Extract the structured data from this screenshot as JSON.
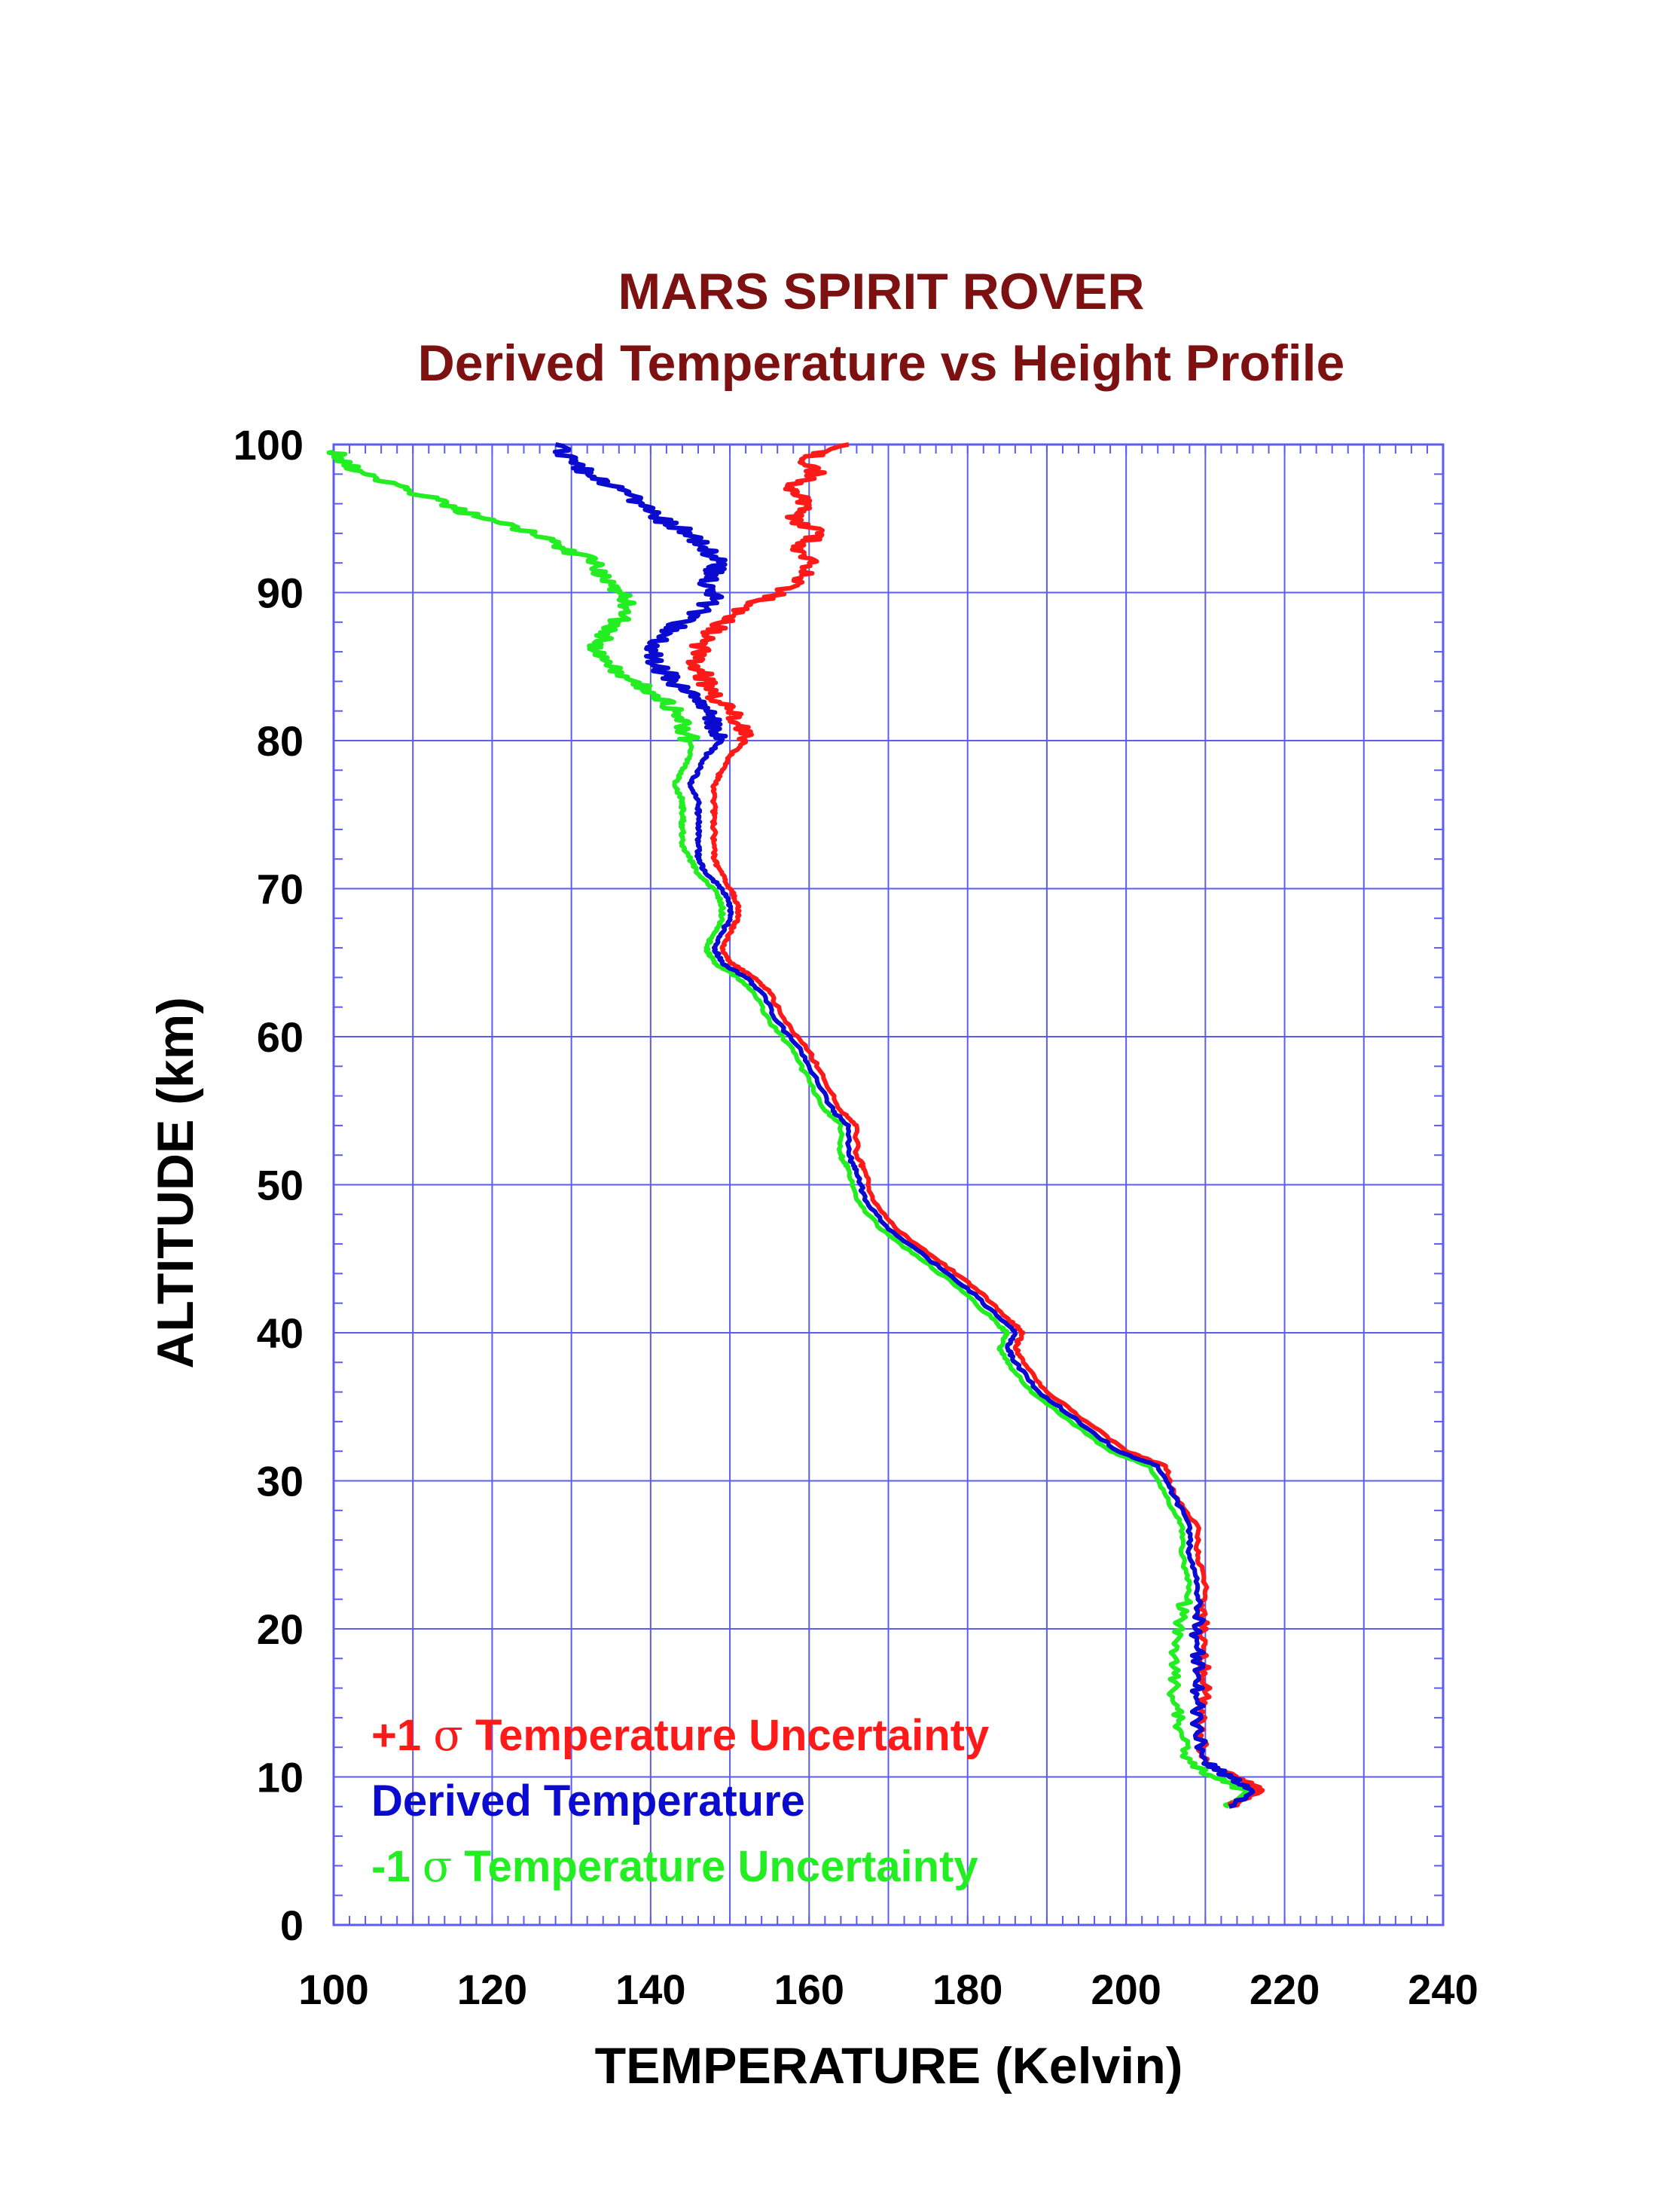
{
  "chart_data": {
    "type": "line",
    "title": "MARS SPIRIT ROVER",
    "subtitle": "Derived Temperature vs Height Profile",
    "xlabel": "TEMPERATURE (Kelvin)",
    "ylabel": "ALTITUDE (km)",
    "xlim": [
      100,
      240
    ],
    "ylim": [
      0,
      100
    ],
    "x_ticks": [
      100,
      120,
      140,
      160,
      180,
      200,
      220,
      240
    ],
    "y_ticks": [
      0,
      10,
      20,
      30,
      40,
      50,
      60,
      70,
      80,
      90,
      100
    ],
    "x_tick_labels": [
      "100",
      "120",
      "140",
      "160",
      "180",
      "200",
      "220",
      "240"
    ],
    "y_tick_labels": [
      "0",
      "10",
      "20",
      "30",
      "40",
      "50",
      "60",
      "70",
      "80",
      "90",
      "100"
    ],
    "grid": true,
    "legend_position": "bottom-left",
    "legend": [
      {
        "prefix": "+1 ",
        "symbol": "σ",
        "suffix": " Temperature Uncertainty",
        "color": "#ff1a1a"
      },
      {
        "prefix": "",
        "symbol": "",
        "suffix": "Derived Temperature",
        "color": "#0a0ad0"
      },
      {
        "prefix": "-1 ",
        "symbol": "σ",
        "suffix": " Temperature Uncertainty",
        "color": "#22ee22"
      }
    ],
    "series": [
      {
        "name": "+1 σ Temperature Uncertainty",
        "color": "#ff1a1a",
        "points": [
          [
            213,
            8
          ],
          [
            217,
            9
          ],
          [
            214,
            10
          ],
          [
            210,
            11
          ],
          [
            209,
            13
          ],
          [
            210,
            15
          ],
          [
            210,
            17
          ],
          [
            210,
            19
          ],
          [
            210,
            21
          ],
          [
            210,
            23
          ],
          [
            209,
            25
          ],
          [
            209,
            27
          ],
          [
            206,
            29
          ],
          [
            205,
            31
          ],
          [
            200,
            32
          ],
          [
            195,
            34
          ],
          [
            190,
            36
          ],
          [
            187,
            38
          ],
          [
            186,
            39
          ],
          [
            187,
            40
          ],
          [
            185,
            41
          ],
          [
            181,
            43
          ],
          [
            176,
            45
          ],
          [
            171,
            47
          ],
          [
            168,
            49
          ],
          [
            167,
            51
          ],
          [
            166,
            52
          ],
          [
            166,
            54
          ],
          [
            164,
            55
          ],
          [
            162,
            57
          ],
          [
            160,
            59
          ],
          [
            157,
            61
          ],
          [
            155,
            63
          ],
          [
            153,
            64
          ],
          [
            150,
            65
          ],
          [
            149,
            66
          ],
          [
            150,
            67
          ],
          [
            151,
            68
          ],
          [
            151,
            69
          ],
          [
            150,
            70
          ],
          [
            149,
            71
          ],
          [
            148,
            72
          ],
          [
            148,
            73
          ],
          [
            148,
            74
          ],
          [
            148,
            75
          ],
          [
            148,
            76
          ],
          [
            148,
            77
          ],
          [
            149,
            78
          ],
          [
            150,
            79
          ],
          [
            152,
            80
          ],
          [
            151,
            81
          ],
          [
            150,
            82
          ],
          [
            148,
            83
          ],
          [
            147,
            84
          ],
          [
            146,
            85
          ],
          [
            146,
            86
          ],
          [
            147,
            87
          ],
          [
            149,
            88
          ],
          [
            152,
            89
          ],
          [
            156,
            90
          ],
          [
            159,
            91
          ],
          [
            160,
            92
          ],
          [
            159,
            93
          ],
          [
            161,
            94
          ],
          [
            158,
            95
          ],
          [
            160,
            96
          ],
          [
            157,
            97
          ],
          [
            161,
            98
          ],
          [
            159,
            99
          ],
          [
            165,
            100
          ]
        ]
      },
      {
        "name": "Derived Temperature",
        "color": "#0a0ad0",
        "points": [
          [
            213,
            8
          ],
          [
            216,
            9
          ],
          [
            213,
            10
          ],
          [
            210,
            11
          ],
          [
            209,
            13
          ],
          [
            209,
            15
          ],
          [
            209,
            17
          ],
          [
            209,
            19
          ],
          [
            209,
            21
          ],
          [
            209,
            23
          ],
          [
            208,
            25
          ],
          [
            208,
            27
          ],
          [
            206,
            29
          ],
          [
            204,
            31
          ],
          [
            199,
            32
          ],
          [
            194,
            34
          ],
          [
            189,
            36
          ],
          [
            186,
            38
          ],
          [
            185,
            39
          ],
          [
            186,
            40
          ],
          [
            184,
            41
          ],
          [
            180,
            43
          ],
          [
            175,
            45
          ],
          [
            170,
            47
          ],
          [
            167,
            49
          ],
          [
            166,
            51
          ],
          [
            165,
            52
          ],
          [
            165,
            54
          ],
          [
            163,
            55
          ],
          [
            161,
            57
          ],
          [
            159,
            59
          ],
          [
            156,
            61
          ],
          [
            154,
            63
          ],
          [
            152,
            64
          ],
          [
            149,
            65
          ],
          [
            148,
            66
          ],
          [
            149,
            67
          ],
          [
            150,
            68
          ],
          [
            150,
            69
          ],
          [
            149,
            70
          ],
          [
            147,
            71
          ],
          [
            146,
            72
          ],
          [
            146,
            73
          ],
          [
            146,
            74
          ],
          [
            146,
            75
          ],
          [
            146,
            76
          ],
          [
            145,
            77
          ],
          [
            146,
            78
          ],
          [
            147,
            79
          ],
          [
            149,
            80
          ],
          [
            148,
            81
          ],
          [
            147,
            82
          ],
          [
            145,
            83
          ],
          [
            143,
            84
          ],
          [
            141,
            85
          ],
          [
            140,
            86
          ],
          [
            141,
            87
          ],
          [
            144,
            88
          ],
          [
            147,
            89
          ],
          [
            148,
            90
          ],
          [
            147,
            91
          ],
          [
            149,
            92
          ],
          [
            147,
            93
          ],
          [
            145,
            94
          ],
          [
            141,
            95
          ],
          [
            139,
            96
          ],
          [
            136,
            97
          ],
          [
            132,
            98
          ],
          [
            130,
            99
          ],
          [
            128,
            100
          ]
        ]
      },
      {
        "name": "-1 σ Temperature Uncertainty",
        "color": "#22ee22",
        "points": [
          [
            213,
            8
          ],
          [
            215,
            9
          ],
          [
            211,
            10
          ],
          [
            208,
            11
          ],
          [
            207,
            13
          ],
          [
            206,
            15
          ],
          [
            206,
            17
          ],
          [
            206,
            19
          ],
          [
            207,
            21
          ],
          [
            208,
            23
          ],
          [
            207,
            25
          ],
          [
            207,
            27
          ],
          [
            205,
            29
          ],
          [
            203,
            31
          ],
          [
            198,
            32
          ],
          [
            193,
            34
          ],
          [
            188,
            36
          ],
          [
            185,
            38
          ],
          [
            184,
            39
          ],
          [
            185,
            40
          ],
          [
            183,
            41
          ],
          [
            179,
            43
          ],
          [
            174,
            45
          ],
          [
            169,
            47
          ],
          [
            166,
            49
          ],
          [
            165,
            51
          ],
          [
            164,
            52
          ],
          [
            164,
            54
          ],
          [
            162,
            55
          ],
          [
            160,
            57
          ],
          [
            158,
            59
          ],
          [
            155,
            61
          ],
          [
            153,
            63
          ],
          [
            151,
            64
          ],
          [
            148,
            65
          ],
          [
            147,
            66
          ],
          [
            148,
            67
          ],
          [
            149,
            68
          ],
          [
            149,
            69
          ],
          [
            148,
            70
          ],
          [
            146,
            71
          ],
          [
            145,
            72
          ],
          [
            144,
            73
          ],
          [
            144,
            74
          ],
          [
            144,
            75
          ],
          [
            144,
            76
          ],
          [
            143,
            77
          ],
          [
            144,
            78
          ],
          [
            145,
            79
          ],
          [
            145,
            80
          ],
          [
            144,
            81
          ],
          [
            143,
            82
          ],
          [
            141,
            83
          ],
          [
            138,
            84
          ],
          [
            135,
            85
          ],
          [
            133,
            86
          ],
          [
            134,
            87
          ],
          [
            136,
            88
          ],
          [
            137,
            89
          ],
          [
            136,
            90
          ],
          [
            134,
            91
          ],
          [
            133,
            92
          ],
          [
            129,
            93
          ],
          [
            125,
            94
          ],
          [
            119,
            95
          ],
          [
            114,
            96
          ],
          [
            109,
            97
          ],
          [
            104,
            98
          ],
          [
            101,
            99
          ],
          [
            100,
            99.5
          ]
        ]
      }
    ]
  }
}
